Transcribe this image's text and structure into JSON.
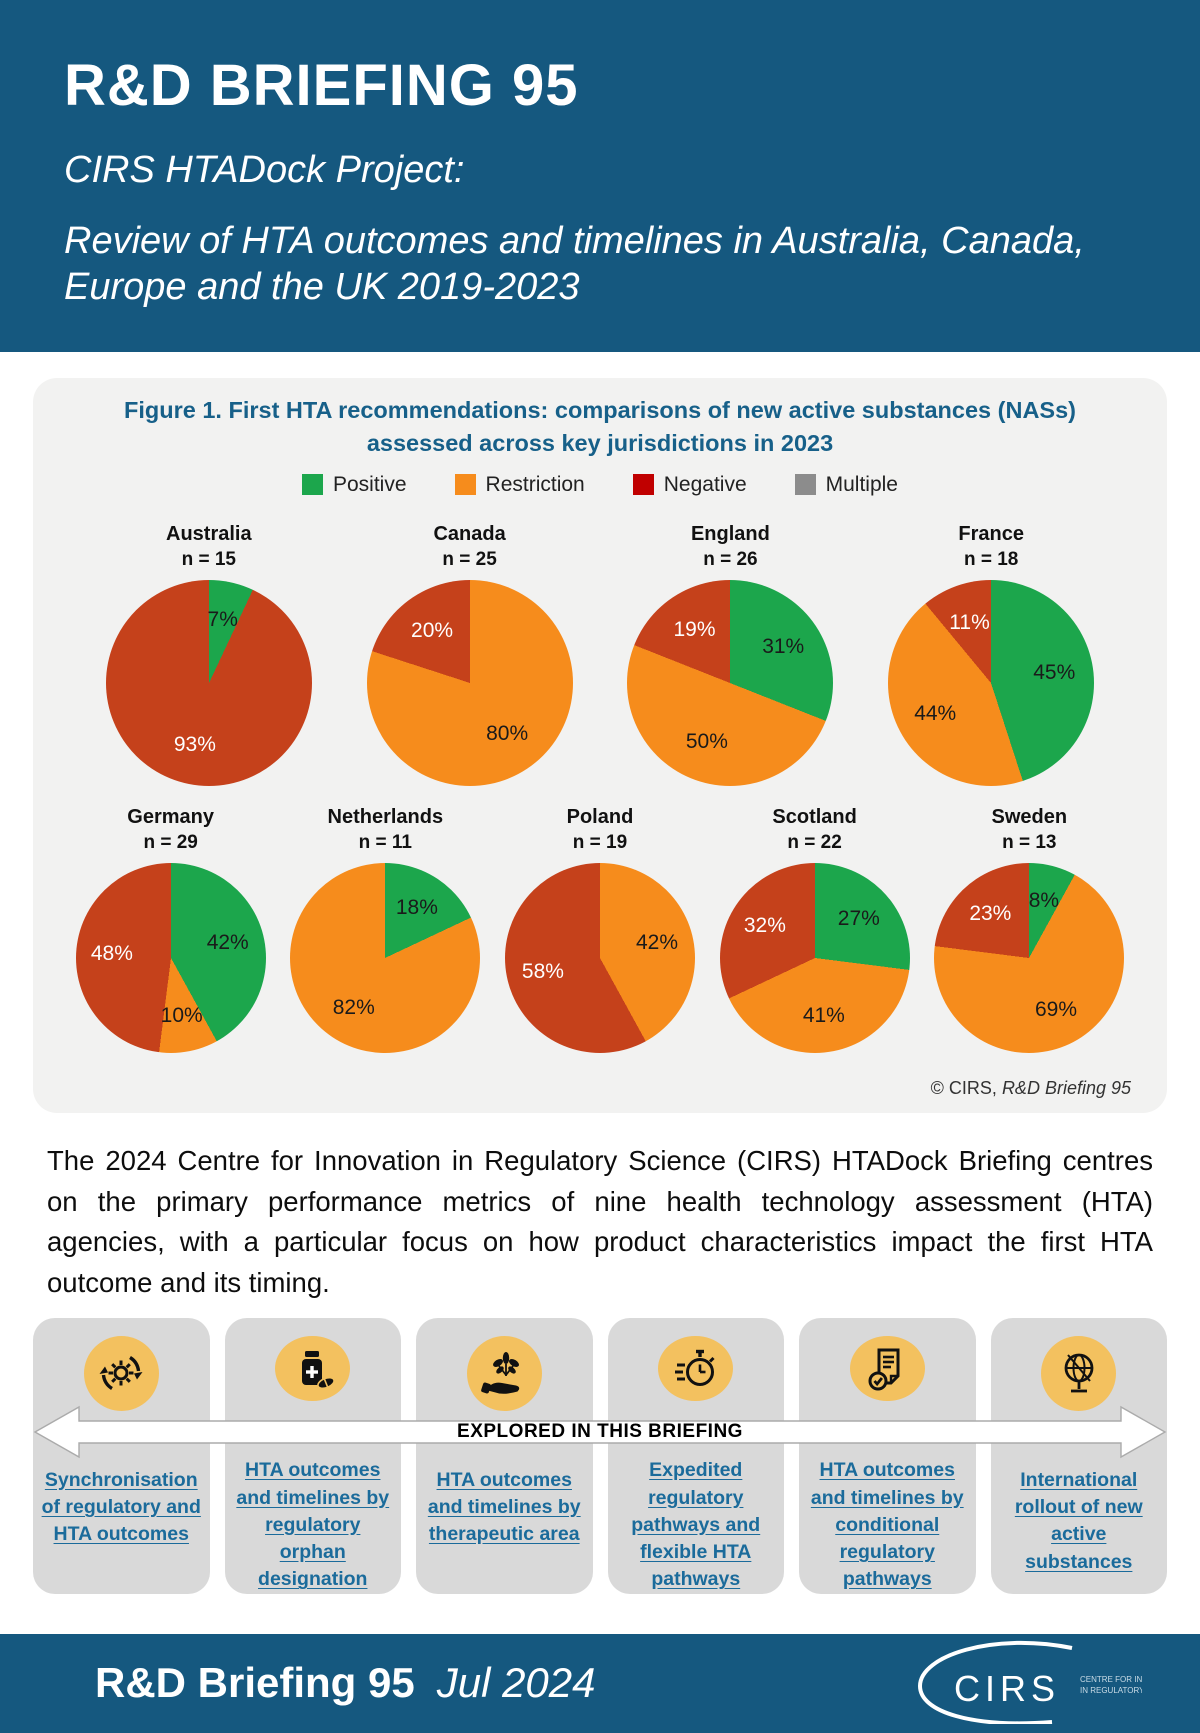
{
  "header": {
    "title": "R&D BRIEFING 95",
    "subtitle1": "CIRS HTADock Project:",
    "subtitle2": "Review of HTA outcomes and timelines in Australia, Canada, Europe and the UK 2019-2023"
  },
  "figure": {
    "title": "Figure 1. First HTA recommendations: comparisons of new active substances (NASs) assessed across key jurisdictions in 2023",
    "legend_items": [
      {
        "label": "Positive",
        "color": "#1CA64C"
      },
      {
        "label": "Restriction",
        "color": "#F68C1C"
      },
      {
        "label": "Negative",
        "color": "#C00000"
      },
      {
        "label": "Multiple",
        "color": "#8C8C8C"
      }
    ],
    "credit_prefix": "© CIRS, ",
    "credit_italic": "R&D Briefing 95"
  },
  "chart_data": {
    "type": "pie",
    "title": "First HTA recommendations: comparisons of new active substances (NASs) assessed across key jurisdictions in 2023",
    "legend_position": "top",
    "outcome_colors": {
      "Positive": "#1CA64C",
      "Restriction": "#F68C1C",
      "Negative": "#C5411B",
      "Multiple": "#8C8C8C"
    },
    "pies": [
      {
        "country": "Australia",
        "n": 15,
        "n_label": "n = 15",
        "row": 1,
        "slices": [
          {
            "outcome": "Positive",
            "pct": 7
          },
          {
            "outcome": "Negative",
            "pct": 93
          }
        ]
      },
      {
        "country": "Canada",
        "n": 25,
        "n_label": "n = 25",
        "row": 1,
        "slices": [
          {
            "outcome": "Restriction",
            "pct": 80
          },
          {
            "outcome": "Negative",
            "pct": 20
          }
        ]
      },
      {
        "country": "England",
        "n": 26,
        "n_label": "n = 26",
        "row": 1,
        "slices": [
          {
            "outcome": "Positive",
            "pct": 31
          },
          {
            "outcome": "Restriction",
            "pct": 50
          },
          {
            "outcome": "Negative",
            "pct": 19
          }
        ]
      },
      {
        "country": "France",
        "n": 18,
        "n_label": "n = 18",
        "row": 1,
        "slices": [
          {
            "outcome": "Positive",
            "pct": 45
          },
          {
            "outcome": "Restriction",
            "pct": 44
          },
          {
            "outcome": "Negative",
            "pct": 11
          }
        ]
      },
      {
        "country": "Germany",
        "n": 29,
        "n_label": "n = 29",
        "row": 2,
        "slices": [
          {
            "outcome": "Positive",
            "pct": 42
          },
          {
            "outcome": "Restriction",
            "pct": 10
          },
          {
            "outcome": "Negative",
            "pct": 48
          }
        ]
      },
      {
        "country": "Netherlands",
        "n": 11,
        "n_label": "n = 11",
        "row": 2,
        "slices": [
          {
            "outcome": "Positive",
            "pct": 18
          },
          {
            "outcome": "Restriction",
            "pct": 82
          }
        ]
      },
      {
        "country": "Poland",
        "n": 19,
        "n_label": "n = 19",
        "row": 2,
        "slices": [
          {
            "outcome": "Restriction",
            "pct": 42
          },
          {
            "outcome": "Negative",
            "pct": 58
          }
        ]
      },
      {
        "country": "Scotland",
        "n": 22,
        "n_label": "n = 22",
        "row": 2,
        "slices": [
          {
            "outcome": "Positive",
            "pct": 27
          },
          {
            "outcome": "Restriction",
            "pct": 41
          },
          {
            "outcome": "Negative",
            "pct": 32
          }
        ]
      },
      {
        "country": "Sweden",
        "n": 13,
        "n_label": "n = 13",
        "row": 2,
        "slices": [
          {
            "outcome": "Positive",
            "pct": 8
          },
          {
            "outcome": "Restriction",
            "pct": 69
          },
          {
            "outcome": "Negative",
            "pct": 23
          }
        ]
      }
    ]
  },
  "paragraph": "The 2024 Centre for Innovation in Regulatory Science (CIRS) HTADock Briefing centres on the primary performance metrics of nine health technology assessment (HTA) agencies, with a particular focus on how product characteristics impact the first HTA outcome and its timing.",
  "banner": {
    "text": "EXPLORED IN THIS BRIEFING"
  },
  "tiles": [
    {
      "icon": "sync-icon",
      "label": "Synchronisation of regulatory and HTA outcomes"
    },
    {
      "icon": "medicine-bottle-icon",
      "label": "HTA outcomes and timelines by regulatory orphan designation"
    },
    {
      "icon": "plant-hand-icon",
      "label": "HTA outcomes and timelines by therapeutic area"
    },
    {
      "icon": "stopwatch-icon",
      "label": "Expedited regulatory pathways and flexible HTA pathways"
    },
    {
      "icon": "document-check-icon",
      "label": "HTA outcomes and timelines by conditional regulatory pathways"
    },
    {
      "icon": "globe-icon",
      "label": "International rollout of new active substances"
    }
  ],
  "footer": {
    "title": "R&D Briefing 95",
    "date": "Jul 2024",
    "logo_text": "CIRS",
    "logo_sub1": "CENTRE FOR INNOVATION",
    "logo_sub2": "IN REGULATORY SCIENCE"
  }
}
